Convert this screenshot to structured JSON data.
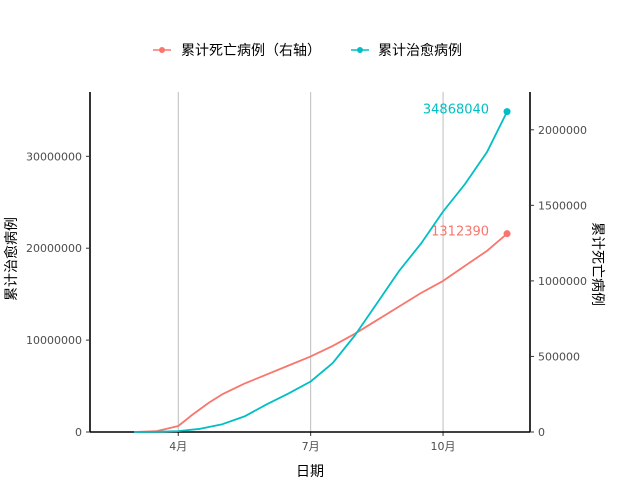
{
  "chart_data": {
    "type": "line",
    "legend_position": "top",
    "grid": "vertical-major",
    "xlabel": "日期",
    "ylabel_left": "累计治愈病例",
    "ylabel_right": "累计死亡病例",
    "x_ticks": [
      "4月",
      "7月",
      "10月"
    ],
    "x_tick_months": [
      4,
      7,
      10
    ],
    "x_range_months": [
      2.0,
      11.97
    ],
    "ylim_left": [
      0,
      37000000
    ],
    "ylim_right": [
      0,
      2250000
    ],
    "y_ticks_left": [
      0,
      10000000,
      20000000,
      30000000
    ],
    "y_ticks_left_labels": [
      "0",
      "10000000",
      "20000000",
      "30000000"
    ],
    "y_ticks_right": [
      0,
      500000,
      1000000,
      1500000,
      2000000
    ],
    "y_ticks_right_labels": [
      "0",
      "500000",
      "1000000",
      "1500000",
      "2000000"
    ],
    "series": [
      {
        "name": "累计死亡病例（右轴）",
        "axis": "right",
        "color": "#F8766D",
        "end_label": "1312390",
        "x_months": [
          3.0,
          3.5,
          4.0,
          4.3,
          4.7,
          5.0,
          5.5,
          6.0,
          6.5,
          7.0,
          7.5,
          8.0,
          8.5,
          9.0,
          9.5,
          10.0,
          10.5,
          11.0,
          11.45
        ],
        "values": [
          0,
          5000,
          40000,
          110000,
          195000,
          250000,
          320000,
          380000,
          440000,
          500000,
          570000,
          650000,
          740000,
          830000,
          920000,
          1000000,
          1100000,
          1200000,
          1312390
        ]
      },
      {
        "name": "累计治愈病例",
        "axis": "left",
        "color": "#00BFC4",
        "end_label": "34868040",
        "x_months": [
          3.0,
          3.5,
          4.0,
          4.5,
          5.0,
          5.5,
          6.0,
          6.5,
          7.0,
          7.5,
          8.0,
          8.5,
          9.0,
          9.5,
          10.0,
          10.5,
          11.0,
          11.45
        ],
        "values": [
          0,
          20000,
          100000,
          350000,
          850000,
          1700000,
          3000000,
          4200000,
          5500000,
          7500000,
          10500000,
          14000000,
          17500000,
          20500000,
          24000000,
          27000000,
          30500000,
          34868040
        ]
      }
    ]
  }
}
